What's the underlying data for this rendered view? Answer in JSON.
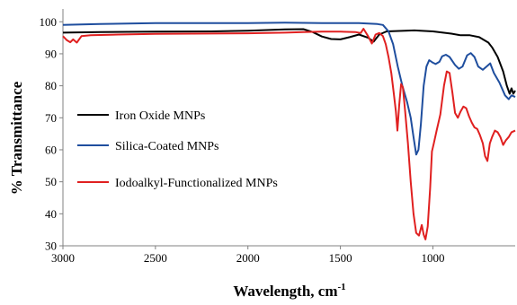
{
  "chart_data": {
    "type": "line",
    "title": "",
    "xlabel": "Wavelength, cm",
    "xlabel_superscript": "-1",
    "ylabel": "% Transmittance",
    "xlim": [
      3000,
      555
    ],
    "ylim": [
      30,
      104
    ],
    "x_reversed": true,
    "grid": false,
    "legend_position": "left-center",
    "x_ticks": [
      3000,
      2500,
      2000,
      1500,
      1000
    ],
    "y_ticks": [
      30,
      40,
      50,
      60,
      70,
      80,
      90,
      100
    ],
    "series": [
      {
        "name": "Iron Oxide MNPs",
        "color": "#000000",
        "points": [
          [
            3000,
            96.6
          ],
          [
            2800,
            96.8
          ],
          [
            2500,
            96.9
          ],
          [
            2200,
            97
          ],
          [
            2000,
            97.2
          ],
          [
            1800,
            97.6
          ],
          [
            1700,
            97.7
          ],
          [
            1650,
            96.8
          ],
          [
            1600,
            95.4
          ],
          [
            1550,
            94.6
          ],
          [
            1500,
            94.5
          ],
          [
            1450,
            95.2
          ],
          [
            1400,
            96
          ],
          [
            1350,
            95
          ],
          [
            1320,
            93.8
          ],
          [
            1290,
            96
          ],
          [
            1250,
            97
          ],
          [
            1200,
            97.1
          ],
          [
            1100,
            97.3
          ],
          [
            1000,
            97
          ],
          [
            900,
            96.3
          ],
          [
            850,
            95.8
          ],
          [
            800,
            95.8
          ],
          [
            750,
            95.2
          ],
          [
            700,
            93.5
          ],
          [
            680,
            92
          ],
          [
            650,
            89
          ],
          [
            620,
            84.5
          ],
          [
            600,
            80
          ],
          [
            585,
            77.5
          ],
          [
            575,
            79.2
          ],
          [
            565,
            77.5
          ],
          [
            555,
            78.5
          ]
        ]
      },
      {
        "name": "Silica-Coated MNPs",
        "color": "#1f4e9e",
        "points": [
          [
            3000,
            99
          ],
          [
            2800,
            99.3
          ],
          [
            2500,
            99.6
          ],
          [
            2200,
            99.6
          ],
          [
            2000,
            99.6
          ],
          [
            1800,
            99.7
          ],
          [
            1600,
            99.6
          ],
          [
            1400,
            99.6
          ],
          [
            1300,
            99.3
          ],
          [
            1270,
            99
          ],
          [
            1240,
            97
          ],
          [
            1215,
            93
          ],
          [
            1190,
            86
          ],
          [
            1165,
            80
          ],
          [
            1140,
            75
          ],
          [
            1120,
            70
          ],
          [
            1105,
            64
          ],
          [
            1090,
            58.5
          ],
          [
            1078,
            60
          ],
          [
            1065,
            68
          ],
          [
            1050,
            80
          ],
          [
            1035,
            86
          ],
          [
            1020,
            88
          ],
          [
            1000,
            87.2
          ],
          [
            985,
            86.8
          ],
          [
            965,
            87.5
          ],
          [
            950,
            89.2
          ],
          [
            930,
            89.7
          ],
          [
            910,
            89
          ],
          [
            880,
            86.5
          ],
          [
            860,
            85.3
          ],
          [
            840,
            86
          ],
          [
            815,
            89.5
          ],
          [
            795,
            90.2
          ],
          [
            775,
            89
          ],
          [
            755,
            86
          ],
          [
            730,
            85
          ],
          [
            710,
            86
          ],
          [
            690,
            87
          ],
          [
            670,
            84
          ],
          [
            640,
            81
          ],
          [
            610,
            77
          ],
          [
            590,
            75.8
          ],
          [
            575,
            77
          ],
          [
            555,
            76.5
          ]
        ]
      },
      {
        "name": "Iodoalkyl-Functionalized MNPs",
        "color": "#e02020",
        "points": [
          [
            3000,
            95.5
          ],
          [
            2980,
            94.3
          ],
          [
            2960,
            93.6
          ],
          [
            2945,
            94.5
          ],
          [
            2925,
            93.5
          ],
          [
            2900,
            95.5
          ],
          [
            2850,
            95.8
          ],
          [
            2700,
            96
          ],
          [
            2500,
            96.2
          ],
          [
            2300,
            96.3
          ],
          [
            2000,
            96.4
          ],
          [
            1800,
            96.6
          ],
          [
            1700,
            96.8
          ],
          [
            1600,
            96.9
          ],
          [
            1500,
            96.9
          ],
          [
            1420,
            96.8
          ],
          [
            1390,
            96.5
          ],
          [
            1375,
            97.8
          ],
          [
            1350,
            95.5
          ],
          [
            1330,
            93.2
          ],
          [
            1310,
            96
          ],
          [
            1290,
            96.5
          ],
          [
            1270,
            95.5
          ],
          [
            1255,
            93
          ],
          [
            1240,
            89
          ],
          [
            1225,
            84
          ],
          [
            1212,
            78
          ],
          [
            1200,
            72
          ],
          [
            1192,
            66
          ],
          [
            1182,
            74
          ],
          [
            1172,
            80.5
          ],
          [
            1162,
            79.5
          ],
          [
            1150,
            72
          ],
          [
            1135,
            62
          ],
          [
            1120,
            50
          ],
          [
            1105,
            40
          ],
          [
            1090,
            34
          ],
          [
            1075,
            33.2
          ],
          [
            1060,
            36.5
          ],
          [
            1050,
            33.5
          ],
          [
            1040,
            32
          ],
          [
            1028,
            36
          ],
          [
            1015,
            48
          ],
          [
            1005,
            59.5
          ],
          [
            995,
            62
          ],
          [
            980,
            66
          ],
          [
            960,
            71
          ],
          [
            940,
            80
          ],
          [
            925,
            84.5
          ],
          [
            910,
            84
          ],
          [
            895,
            78
          ],
          [
            880,
            71.5
          ],
          [
            865,
            70
          ],
          [
            850,
            72
          ],
          [
            835,
            73.5
          ],
          [
            820,
            73
          ],
          [
            805,
            70.5
          ],
          [
            790,
            68.5
          ],
          [
            775,
            67
          ],
          [
            760,
            66.5
          ],
          [
            745,
            64.5
          ],
          [
            730,
            62
          ],
          [
            718,
            58
          ],
          [
            705,
            56.5
          ],
          [
            692,
            62
          ],
          [
            680,
            64
          ],
          [
            665,
            66
          ],
          [
            650,
            65.5
          ],
          [
            635,
            64
          ],
          [
            620,
            61.5
          ],
          [
            605,
            63
          ],
          [
            590,
            64
          ],
          [
            575,
            65.5
          ],
          [
            555,
            66
          ]
        ]
      }
    ]
  }
}
